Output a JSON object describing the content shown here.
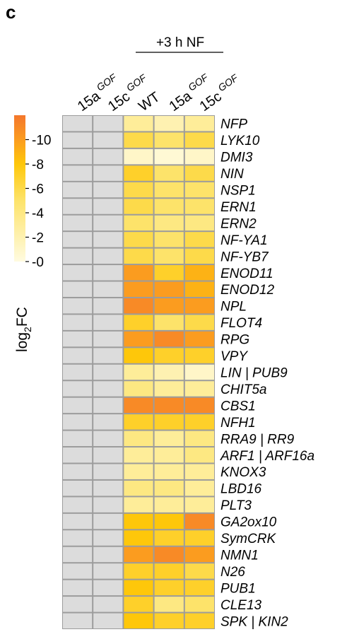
{
  "panel_label": "c",
  "chart_data": {
    "type": "heatmap",
    "group_label": "+3 h NF",
    "columns": [
      {
        "base": "15a",
        "sup": "GOF"
      },
      {
        "base": "15c",
        "sup": "GOF"
      },
      {
        "base": "WT",
        "sup": ""
      },
      {
        "base": "15a",
        "sup": "GOF"
      },
      {
        "base": "15c",
        "sup": "GOF"
      }
    ],
    "grouped_columns": [
      2,
      3,
      4
    ],
    "rows": [
      "NFP",
      "LYK10",
      "DMI3",
      "NIN",
      "NSP1",
      "ERN1",
      "ERN2",
      "NF-YA1",
      "NF-YB7",
      "ENOD11",
      "ENOD12",
      "NPL",
      "FLOT4",
      "RPG",
      "VPY",
      "LIN | PUB9",
      "CHIT5a",
      "CBS1",
      "NFH1",
      "RRA9 | RR9",
      "ARF1 | ARF16a",
      "KNOX3",
      "LBD16",
      "PLT3",
      "GA2ox10",
      "SymCRK",
      "NMN1",
      "N26",
      "PUB1",
      "CLE13",
      "SPK | KIN2"
    ],
    "values": [
      [
        null,
        null,
        3,
        2,
        3
      ],
      [
        null,
        null,
        6,
        5,
        6
      ],
      [
        null,
        null,
        1,
        0.5,
        1
      ],
      [
        null,
        null,
        7,
        5,
        6
      ],
      [
        null,
        null,
        6,
        5,
        5
      ],
      [
        null,
        null,
        6,
        5,
        5
      ],
      [
        null,
        null,
        5,
        4,
        4
      ],
      [
        null,
        null,
        6,
        5,
        6
      ],
      [
        null,
        null,
        6,
        5,
        6
      ],
      [
        null,
        null,
        10,
        7,
        9
      ],
      [
        null,
        null,
        10,
        10,
        9
      ],
      [
        null,
        null,
        11,
        10,
        10
      ],
      [
        null,
        null,
        7,
        5,
        6
      ],
      [
        null,
        null,
        10,
        11,
        10
      ],
      [
        null,
        null,
        8,
        7,
        7
      ],
      [
        null,
        null,
        3,
        2,
        1
      ],
      [
        null,
        null,
        4,
        3,
        3
      ],
      [
        null,
        null,
        11,
        11,
        11
      ],
      [
        null,
        null,
        7,
        7,
        7
      ],
      [
        null,
        null,
        4,
        3,
        4
      ],
      [
        null,
        null,
        3,
        3,
        4
      ],
      [
        null,
        null,
        3,
        3,
        3
      ],
      [
        null,
        null,
        4,
        4,
        3
      ],
      [
        null,
        null,
        3,
        3,
        3
      ],
      [
        null,
        null,
        8,
        8,
        11
      ],
      [
        null,
        null,
        8,
        7,
        7
      ],
      [
        null,
        null,
        10,
        11,
        10
      ],
      [
        null,
        null,
        7,
        7,
        6
      ],
      [
        null,
        null,
        8,
        7,
        7
      ],
      [
        null,
        null,
        7,
        4,
        5
      ],
      [
        null,
        null,
        8,
        7,
        7
      ]
    ],
    "missing_color": "#dcdcdc",
    "colorbar": {
      "label_base": "log",
      "label_sub": "2",
      "label_tail": "FC",
      "min": 0,
      "max": 12,
      "ticks": [
        "0",
        "2",
        "4",
        "6",
        "8",
        "10"
      ],
      "tick_values": [
        0,
        2,
        4,
        6,
        8,
        10
      ],
      "stops": [
        {
          "v": 0,
          "color": "#fffbe0"
        },
        {
          "v": 5,
          "color": "#fde36a"
        },
        {
          "v": 8,
          "color": "#fec70a"
        },
        {
          "v": 10,
          "color": "#fb9c1f"
        },
        {
          "v": 12,
          "color": "#f4772c"
        }
      ]
    }
  }
}
